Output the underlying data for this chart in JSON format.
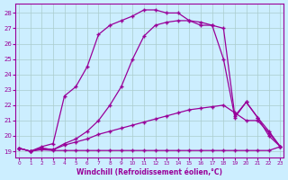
{
  "xlabel": "Windchill (Refroidissement éolien,°C)",
  "bg_color": "#cceeff",
  "line_color": "#990099",
  "grid_color": "#aacccc",
  "xticks": [
    0,
    1,
    2,
    3,
    4,
    5,
    6,
    7,
    8,
    9,
    10,
    11,
    12,
    13,
    14,
    15,
    16,
    17,
    18,
    19,
    20,
    21,
    22,
    23
  ],
  "yticks": [
    19,
    20,
    21,
    22,
    23,
    24,
    25,
    26,
    27,
    28
  ],
  "ylim": [
    18.6,
    28.6
  ],
  "xlim": [
    -0.3,
    23.3
  ],
  "line1_y": [
    19.2,
    19.0,
    19.1,
    19.05,
    19.05,
    19.05,
    19.05,
    19.05,
    19.05,
    19.05,
    19.05,
    19.05,
    19.05,
    19.05,
    19.05,
    19.05,
    19.05,
    19.05,
    19.05,
    19.05,
    19.05,
    19.05,
    19.05,
    19.3
  ],
  "line2_y": [
    19.2,
    19.0,
    19.2,
    19.1,
    19.4,
    19.6,
    19.8,
    20.1,
    20.3,
    20.5,
    20.7,
    20.9,
    21.1,
    21.3,
    21.5,
    21.7,
    21.8,
    21.9,
    22.0,
    21.5,
    21.0,
    21.0,
    20.2,
    19.3
  ],
  "line3_y": [
    19.2,
    19.0,
    19.2,
    19.1,
    19.5,
    19.8,
    20.3,
    21.0,
    22.0,
    23.2,
    25.0,
    26.5,
    27.2,
    27.4,
    27.5,
    27.5,
    27.4,
    27.2,
    27.0,
    21.3,
    22.2,
    21.2,
    20.3,
    19.3
  ],
  "line4_y": [
    19.2,
    19.0,
    19.3,
    19.5,
    22.6,
    23.2,
    24.5,
    26.6,
    27.2,
    27.5,
    27.8,
    28.2,
    28.2,
    28.0,
    28.0,
    27.5,
    27.2,
    27.2,
    25.0,
    21.2,
    22.2,
    21.2,
    20.0,
    19.3
  ]
}
